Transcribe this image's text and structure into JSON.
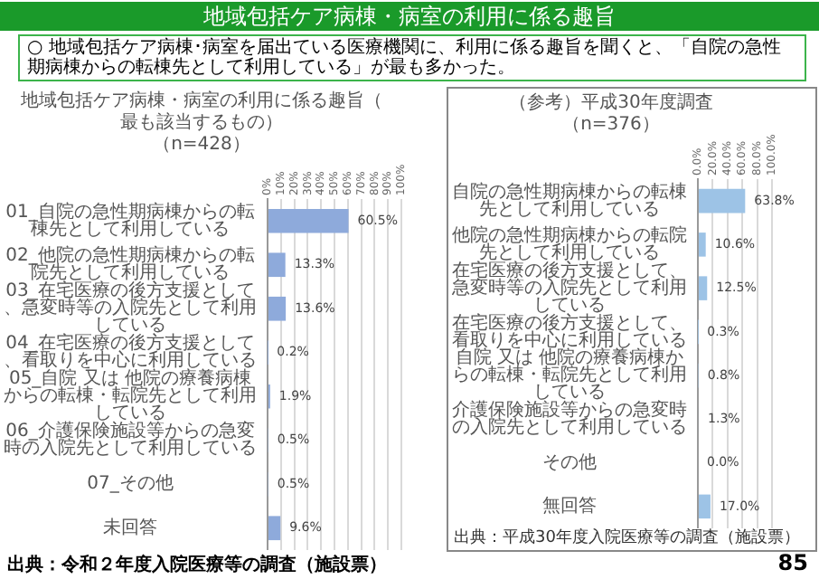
{
  "chart_data": [
    {
      "type": "bar",
      "orientation": "horizontal",
      "title": "地域包括ケア病棟・病室の利用に係る趣旨（最も該当するもの）",
      "subtitle": "（n=428）",
      "categories": [
        "01_自院の急性期病棟からの転棟先として利用している",
        "02_他院の急性期病棟からの転院先として利用している",
        "03_在宅医療の後方支援として、急変時等の入院先として利用している",
        "04_在宅医療の後方支援として、看取りを中心に利用している",
        "05_自院 又は 他院の療養病棟からの転棟・転院先として利用している",
        "06_介護保険施設等からの急変時の入院先として利用している",
        "07_その他",
        "未回答"
      ],
      "values": [
        60.5,
        13.3,
        13.6,
        0.2,
        1.9,
        0.5,
        0.5,
        9.6
      ],
      "value_labels": [
        "60.5%",
        "13.3%",
        "13.6%",
        "0.2%",
        "1.9%",
        "0.5%",
        "0.5%",
        "9.6%"
      ],
      "color": "#8eaadb",
      "xlim": [
        0,
        100
      ],
      "xticks": [
        {
          "value": 0,
          "label": "0%"
        },
        {
          "value": 10,
          "label": "10%"
        },
        {
          "value": 20,
          "label": "20%"
        },
        {
          "value": 30,
          "label": "30%"
        },
        {
          "value": 40,
          "label": "40%"
        },
        {
          "value": 50,
          "label": "50%"
        },
        {
          "value": 60,
          "label": "60%"
        },
        {
          "value": 70,
          "label": "70%"
        },
        {
          "value": 80,
          "label": "80%"
        },
        {
          "value": 90,
          "label": "90%"
        },
        {
          "value": 100,
          "label": "100%"
        }
      ],
      "grid": "x",
      "legend": false,
      "annotations": [
        "地域包括ケア病棟・病室の利用に係る趣旨",
        "○ 地域包括ケア病棟･病室を届出ている医療機関に、利用に係る趣旨を聞くと、「自院の急性期病棟からの転棟先として利用している」が最も多かった。",
        "出典：令和２年度入院医療等の調査（施設票）",
        "85"
      ]
    },
    {
      "type": "bar",
      "orientation": "horizontal",
      "title": "（参考）平成30年度調査",
      "subtitle": "（n=376）",
      "categories": [
        "自院の急性期病棟からの転棟先として利用している",
        "他院の急性期病棟からの転院先として利用している",
        "在宅医療の後方支援として、急変時等の入院先として利用している",
        "在宅医療の後方支援として、看取りを中心に利用している",
        "自院 又は 他院の療養病棟からの転棟・転院先として利用している",
        "介護保険施設等からの急変時の入院先として利用している",
        "その他",
        "無回答"
      ],
      "values": [
        63.8,
        10.6,
        12.5,
        0.3,
        0.8,
        1.3,
        0.0,
        17.0
      ],
      "value_labels": [
        "63.8%",
        "10.6%",
        "12.5%",
        "0.3%",
        "0.8%",
        "1.3%",
        "0.0%",
        "17.0%"
      ],
      "color": "#9dc3e6",
      "xlim": [
        0,
        100
      ],
      "xticks": [
        {
          "value": 0,
          "label": "0.0%"
        },
        {
          "value": 20,
          "label": "20.0%"
        },
        {
          "value": 40,
          "label": "40.0%"
        },
        {
          "value": 60,
          "label": "60.0%"
        },
        {
          "value": 80,
          "label": "80.0%"
        },
        {
          "value": 100,
          "label": "100.0%"
        }
      ],
      "grid": "x",
      "legend": false,
      "annotations": [
        "出典：平成30年度入院医療等の調査（施設票）"
      ]
    }
  ]
}
